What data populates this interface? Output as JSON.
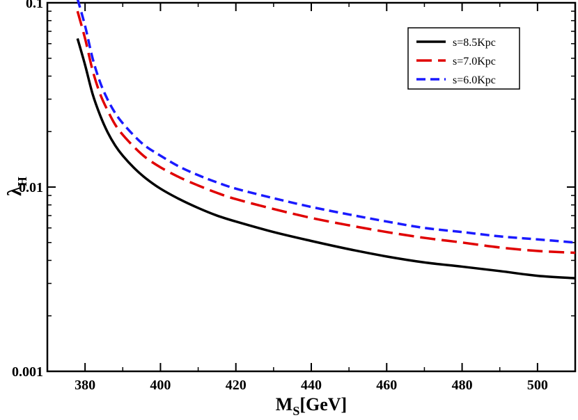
{
  "chart_data": {
    "type": "line",
    "title": "",
    "xlabel": {
      "main": "M",
      "sub": "S",
      "rest": "[GeV]"
    },
    "ylabel": {
      "main": "λ",
      "sub": "H"
    },
    "xlim": [
      370,
      510
    ],
    "ylim": [
      0.001,
      0.1
    ],
    "yscale": "log",
    "x_ticks": [
      380,
      400,
      420,
      440,
      460,
      480,
      500
    ],
    "x_tick_labels": [
      "380",
      "400",
      "420",
      "440",
      "460",
      "480",
      "500"
    ],
    "y_ticks": [
      0.001,
      0.01,
      0.1
    ],
    "y_tick_labels": [
      "0.001",
      "0.01",
      "0.1"
    ],
    "legend_position": "top-right",
    "series": [
      {
        "name": "s=8.5Kpc",
        "color": "#000000",
        "dash": "solid",
        "x": [
          378,
          380,
          382,
          384,
          386,
          388,
          390,
          393,
          396,
          400,
          405,
          410,
          415,
          420,
          430,
          440,
          450,
          460,
          470,
          480,
          490,
          500,
          510
        ],
        "y": [
          0.064,
          0.046,
          0.032,
          0.0245,
          0.0198,
          0.0168,
          0.0148,
          0.0127,
          0.0112,
          0.0098,
          0.0086,
          0.0077,
          0.007,
          0.0065,
          0.0057,
          0.0051,
          0.0046,
          0.0042,
          0.0039,
          0.0037,
          0.0035,
          0.0033,
          0.0032
        ]
      },
      {
        "name": "s=7.0Kpc",
        "color": "#e00000",
        "dash": "long-dash",
        "x": [
          378,
          380,
          382,
          384,
          386,
          388,
          390,
          393,
          396,
          400,
          405,
          410,
          415,
          420,
          430,
          440,
          450,
          460,
          470,
          480,
          490,
          500,
          510
        ],
        "y": [
          0.09,
          0.064,
          0.043,
          0.032,
          0.026,
          0.0218,
          0.0192,
          0.0165,
          0.0145,
          0.0128,
          0.0113,
          0.0102,
          0.0093,
          0.0086,
          0.0076,
          0.0068,
          0.0062,
          0.0057,
          0.0053,
          0.005,
          0.0047,
          0.0045,
          0.0044
        ]
      },
      {
        "name": "s=6.0Kpc",
        "color": "#1a1aff",
        "dash": "dash",
        "x": [
          378,
          380,
          382,
          384,
          386,
          388,
          390,
          393,
          396,
          400,
          405,
          410,
          415,
          420,
          430,
          440,
          450,
          460,
          470,
          480,
          490,
          500,
          510
        ],
        "y": [
          0.105,
          0.075,
          0.05,
          0.037,
          0.0298,
          0.0252,
          0.0222,
          0.019,
          0.0167,
          0.0148,
          0.0129,
          0.0116,
          0.0106,
          0.0098,
          0.0087,
          0.0078,
          0.0071,
          0.0065,
          0.006,
          0.0057,
          0.0054,
          0.0052,
          0.005
        ]
      }
    ]
  }
}
